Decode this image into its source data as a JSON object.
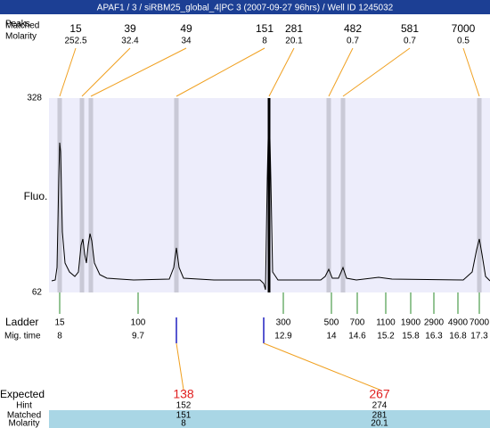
{
  "header": {
    "title": "APAF1 / 3 / siRBM25_global_4|PC 3 (2007-09-27 96hrs) / Well ID 1245032"
  },
  "peak_table": {
    "row_labels": [
      "Peaks",
      "Matched",
      "Molarity"
    ],
    "peaks": [
      {
        "size": 15,
        "molarity": 252.5
      },
      {
        "size": 39,
        "molarity": 32.4
      },
      {
        "size": 49,
        "molarity": 34
      },
      {
        "size": 151,
        "molarity": 8
      },
      {
        "size": 281,
        "molarity": 20.1
      },
      {
        "size": 482,
        "molarity": 0.7
      },
      {
        "size": 581,
        "molarity": 0.7
      },
      {
        "size": 7000,
        "molarity": 0.5
      }
    ]
  },
  "fluorescence_axis": {
    "label": "Fluo.",
    "max": 328,
    "min": 62
  },
  "ladder": {
    "row_labels": [
      "Ladder",
      "Mig. time"
    ],
    "sizes": [
      15,
      100,
      300,
      500,
      700,
      1100,
      1900,
      2900,
      4900,
      7000
    ],
    "migration_times": [
      8,
      9.7,
      12.9,
      14,
      14.6,
      15.2,
      15.8,
      16.3,
      16.8,
      17.3
    ]
  },
  "expected": {
    "row_labels": [
      "Expected",
      "Hint",
      "Matched",
      "Molarity"
    ],
    "columns": [
      {
        "expected": 138,
        "hint": 152,
        "matched": 151,
        "molarity": 8
      },
      {
        "expected": 267,
        "hint": 274,
        "matched": 281,
        "molarity": 20.1
      }
    ]
  }
}
